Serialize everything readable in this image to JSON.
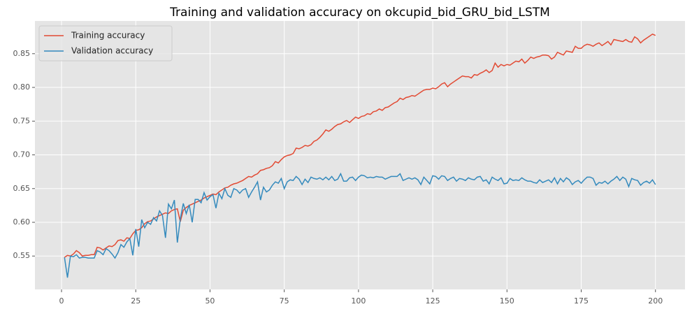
{
  "chart_data": {
    "type": "line",
    "title": "Training and validation accuracy on okcupid_bid_GRU_bid_LSTM",
    "x": [
      1,
      2,
      3,
      4,
      5,
      6,
      7,
      8,
      9,
      10,
      11,
      12,
      13,
      14,
      15,
      16,
      17,
      18,
      19,
      20,
      21,
      22,
      23,
      24,
      25,
      26,
      27,
      28,
      29,
      30,
      31,
      32,
      33,
      34,
      35,
      36,
      37,
      38,
      39,
      40,
      41,
      42,
      43,
      44,
      45,
      46,
      47,
      48,
      49,
      50,
      51,
      52,
      53,
      54,
      55,
      56,
      57,
      58,
      59,
      60,
      61,
      62,
      63,
      64,
      65,
      66,
      67,
      68,
      69,
      70,
      71,
      72,
      73,
      74,
      75,
      76,
      77,
      78,
      79,
      80,
      81,
      82,
      83,
      84,
      85,
      86,
      87,
      88,
      89,
      90,
      91,
      92,
      93,
      94,
      95,
      96,
      97,
      98,
      99,
      100,
      101,
      102,
      103,
      104,
      105,
      106,
      107,
      108,
      109,
      110,
      111,
      112,
      113,
      114,
      115,
      116,
      117,
      118,
      119,
      120,
      121,
      122,
      123,
      124,
      125,
      126,
      127,
      128,
      129,
      130,
      131,
      132,
      133,
      134,
      135,
      136,
      137,
      138,
      139,
      140,
      141,
      142,
      143,
      144,
      145,
      146,
      147,
      148,
      149,
      150,
      151,
      152,
      153,
      154,
      155,
      156,
      157,
      158,
      159,
      160,
      161,
      162,
      163,
      164,
      165,
      166,
      167,
      168,
      169,
      170,
      171,
      172,
      173,
      174,
      175,
      176,
      177,
      178,
      179,
      180,
      181,
      182,
      183,
      184,
      185,
      186,
      187,
      188,
      189,
      190,
      191,
      192,
      193,
      194,
      195,
      196,
      197,
      198,
      199,
      200
    ],
    "series": [
      {
        "name": "Training accuracy",
        "color": "#E24A33",
        "values": [
          0.548,
          0.551,
          0.55,
          0.553,
          0.558,
          0.555,
          0.55,
          0.551,
          0.551,
          0.552,
          0.552,
          0.563,
          0.562,
          0.559,
          0.562,
          0.565,
          0.564,
          0.567,
          0.573,
          0.574,
          0.572,
          0.577,
          0.576,
          0.583,
          0.588,
          0.589,
          0.592,
          0.598,
          0.601,
          0.602,
          0.605,
          0.608,
          0.61,
          0.612,
          0.614,
          0.613,
          0.617,
          0.619,
          0.62,
          0.601,
          0.618,
          0.622,
          0.625,
          0.627,
          0.629,
          0.631,
          0.633,
          0.636,
          0.638,
          0.64,
          0.642,
          0.641,
          0.645,
          0.648,
          0.651,
          0.652,
          0.655,
          0.657,
          0.658,
          0.66,
          0.662,
          0.665,
          0.668,
          0.667,
          0.67,
          0.672,
          0.677,
          0.678,
          0.68,
          0.681,
          0.684,
          0.69,
          0.688,
          0.693,
          0.697,
          0.699,
          0.7,
          0.702,
          0.71,
          0.709,
          0.711,
          0.714,
          0.713,
          0.715,
          0.72,
          0.722,
          0.726,
          0.731,
          0.737,
          0.735,
          0.738,
          0.742,
          0.745,
          0.746,
          0.749,
          0.751,
          0.748,
          0.752,
          0.756,
          0.754,
          0.757,
          0.758,
          0.761,
          0.76,
          0.764,
          0.765,
          0.768,
          0.766,
          0.77,
          0.771,
          0.774,
          0.777,
          0.779,
          0.784,
          0.782,
          0.785,
          0.786,
          0.788,
          0.787,
          0.79,
          0.793,
          0.796,
          0.797,
          0.797,
          0.799,
          0.798,
          0.801,
          0.805,
          0.807,
          0.801,
          0.805,
          0.808,
          0.811,
          0.814,
          0.817,
          0.816,
          0.816,
          0.814,
          0.819,
          0.818,
          0.821,
          0.823,
          0.826,
          0.822,
          0.825,
          0.836,
          0.83,
          0.834,
          0.832,
          0.834,
          0.833,
          0.836,
          0.839,
          0.838,
          0.842,
          0.836,
          0.84,
          0.845,
          0.843,
          0.845,
          0.846,
          0.848,
          0.848,
          0.847,
          0.842,
          0.845,
          0.852,
          0.85,
          0.848,
          0.854,
          0.853,
          0.852,
          0.861,
          0.858,
          0.858,
          0.862,
          0.864,
          0.863,
          0.861,
          0.864,
          0.866,
          0.862,
          0.865,
          0.868,
          0.863,
          0.871,
          0.87,
          0.869,
          0.868,
          0.871,
          0.868,
          0.867,
          0.875,
          0.872,
          0.866,
          0.87,
          0.873,
          0.876,
          0.879,
          0.877
        ]
      },
      {
        "name": "Validation accuracy",
        "color": "#348ABD",
        "values": [
          0.548,
          0.518,
          0.55,
          0.549,
          0.552,
          0.547,
          0.548,
          0.548,
          0.547,
          0.547,
          0.547,
          0.558,
          0.556,
          0.552,
          0.561,
          0.558,
          0.553,
          0.547,
          0.555,
          0.567,
          0.563,
          0.571,
          0.576,
          0.551,
          0.59,
          0.564,
          0.604,
          0.592,
          0.6,
          0.597,
          0.607,
          0.602,
          0.617,
          0.61,
          0.577,
          0.627,
          0.62,
          0.633,
          0.57,
          0.605,
          0.628,
          0.613,
          0.626,
          0.6,
          0.634,
          0.634,
          0.629,
          0.644,
          0.633,
          0.638,
          0.641,
          0.621,
          0.643,
          0.635,
          0.65,
          0.64,
          0.637,
          0.65,
          0.648,
          0.643,
          0.648,
          0.65,
          0.637,
          0.645,
          0.652,
          0.66,
          0.633,
          0.652,
          0.645,
          0.648,
          0.655,
          0.66,
          0.658,
          0.665,
          0.65,
          0.66,
          0.663,
          0.662,
          0.668,
          0.664,
          0.656,
          0.664,
          0.659,
          0.667,
          0.665,
          0.664,
          0.666,
          0.663,
          0.667,
          0.663,
          0.668,
          0.662,
          0.664,
          0.672,
          0.661,
          0.661,
          0.666,
          0.667,
          0.662,
          0.667,
          0.67,
          0.669,
          0.666,
          0.667,
          0.666,
          0.668,
          0.667,
          0.667,
          0.664,
          0.666,
          0.668,
          0.668,
          0.668,
          0.672,
          0.662,
          0.664,
          0.666,
          0.664,
          0.666,
          0.663,
          0.656,
          0.667,
          0.662,
          0.657,
          0.669,
          0.668,
          0.664,
          0.669,
          0.668,
          0.662,
          0.665,
          0.667,
          0.661,
          0.665,
          0.664,
          0.662,
          0.666,
          0.664,
          0.663,
          0.667,
          0.668,
          0.661,
          0.663,
          0.657,
          0.667,
          0.664,
          0.662,
          0.666,
          0.657,
          0.658,
          0.665,
          0.662,
          0.663,
          0.662,
          0.666,
          0.663,
          0.661,
          0.661,
          0.659,
          0.658,
          0.663,
          0.659,
          0.661,
          0.663,
          0.659,
          0.666,
          0.657,
          0.665,
          0.66,
          0.666,
          0.663,
          0.656,
          0.66,
          0.662,
          0.658,
          0.663,
          0.667,
          0.667,
          0.665,
          0.655,
          0.659,
          0.658,
          0.661,
          0.657,
          0.661,
          0.664,
          0.668,
          0.662,
          0.667,
          0.664,
          0.653,
          0.665,
          0.663,
          0.662,
          0.655,
          0.659,
          0.661,
          0.658,
          0.663,
          0.656
        ]
      }
    ],
    "xlim": [
      -8.95,
      209.95
    ],
    "xticks": [
      0,
      25,
      50,
      75,
      100,
      125,
      150,
      175,
      200
    ],
    "ylim": [
      0.5005,
      0.8985
    ],
    "yticks": [
      0.55,
      {
        "value": 0.6,
        "label": "0.60"
      },
      0.65,
      {
        "value": 0.7,
        "label": "0.70"
      },
      0.75,
      {
        "value": 0.8,
        "label": "0.80"
      },
      0.85
    ],
    "grid": true,
    "legend": "upper-left"
  }
}
